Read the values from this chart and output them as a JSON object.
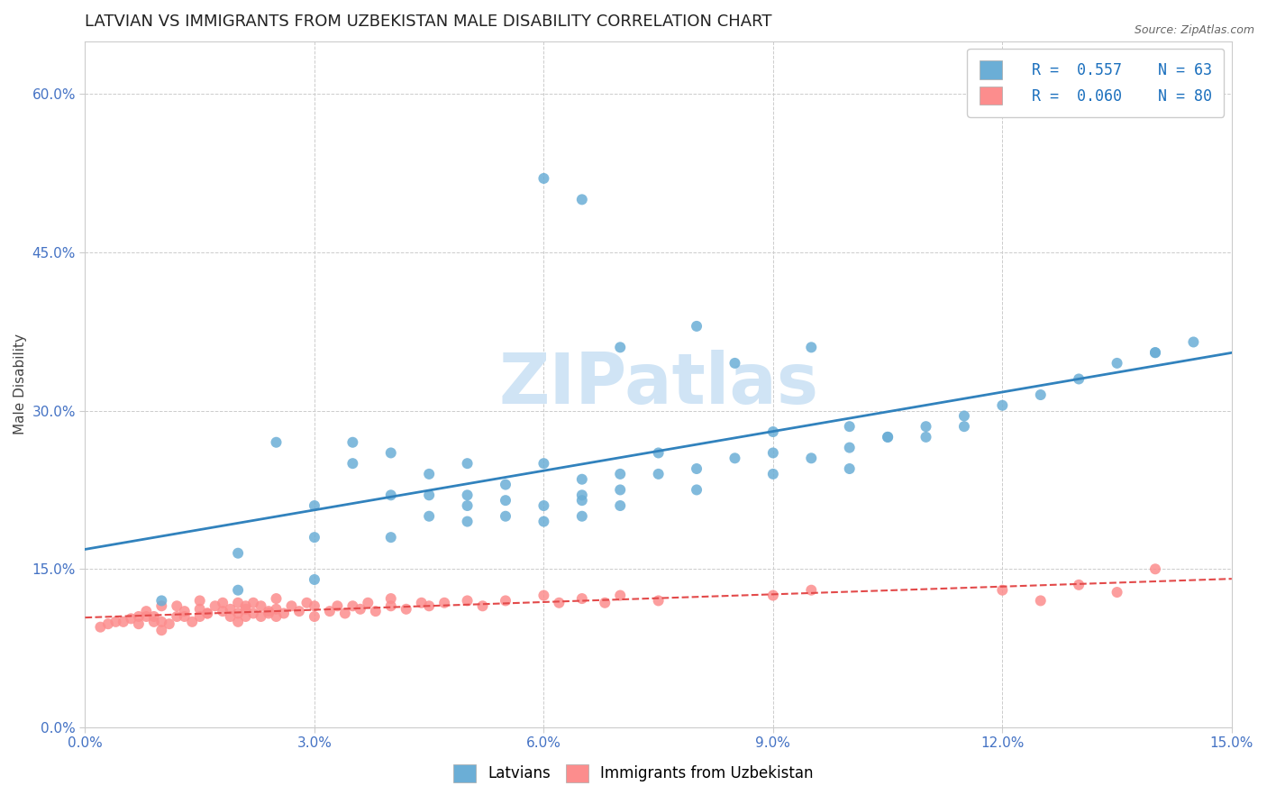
{
  "title": "LATVIAN VS IMMIGRANTS FROM UZBEKISTAN MALE DISABILITY CORRELATION CHART",
  "source_text": "Source: ZipAtlas.com",
  "xlabel": "",
  "ylabel": "Male Disability",
  "xlim": [
    0.0,
    0.15
  ],
  "ylim": [
    0.0,
    0.65
  ],
  "xticks": [
    0.0,
    0.03,
    0.06,
    0.09,
    0.12,
    0.15
  ],
  "yticks": [
    0.0,
    0.15,
    0.3,
    0.45,
    0.6
  ],
  "latvian_color": "#6baed6",
  "uzbek_color": "#fc8d8d",
  "trend_latvian_color": "#3182bd",
  "trend_uzbek_color": "#e34a4a",
  "legend_R_latvian": "R =  0.557",
  "legend_N_latvian": "N = 63",
  "legend_R_uzbek": "R =  0.060",
  "legend_N_uzbek": "N = 80",
  "latvian_scatter_x": [
    0.01,
    0.02,
    0.02,
    0.025,
    0.03,
    0.03,
    0.03,
    0.035,
    0.035,
    0.04,
    0.04,
    0.04,
    0.045,
    0.045,
    0.045,
    0.05,
    0.05,
    0.05,
    0.05,
    0.055,
    0.055,
    0.055,
    0.06,
    0.06,
    0.06,
    0.065,
    0.065,
    0.065,
    0.065,
    0.07,
    0.07,
    0.07,
    0.075,
    0.075,
    0.08,
    0.08,
    0.085,
    0.09,
    0.09,
    0.09,
    0.095,
    0.1,
    0.1,
    0.1,
    0.105,
    0.11,
    0.115,
    0.12,
    0.125,
    0.13,
    0.135,
    0.14,
    0.145,
    0.06,
    0.065,
    0.07,
    0.08,
    0.085,
    0.095,
    0.105,
    0.11,
    0.115,
    0.14
  ],
  "latvian_scatter_y": [
    0.12,
    0.13,
    0.165,
    0.27,
    0.14,
    0.18,
    0.21,
    0.25,
    0.27,
    0.18,
    0.22,
    0.26,
    0.2,
    0.22,
    0.24,
    0.195,
    0.21,
    0.22,
    0.25,
    0.2,
    0.215,
    0.23,
    0.195,
    0.21,
    0.25,
    0.2,
    0.215,
    0.22,
    0.235,
    0.21,
    0.225,
    0.24,
    0.24,
    0.26,
    0.225,
    0.245,
    0.255,
    0.24,
    0.26,
    0.28,
    0.255,
    0.245,
    0.265,
    0.285,
    0.275,
    0.275,
    0.285,
    0.305,
    0.315,
    0.33,
    0.345,
    0.355,
    0.365,
    0.52,
    0.5,
    0.36,
    0.38,
    0.345,
    0.36,
    0.275,
    0.285,
    0.295,
    0.355
  ],
  "uzbek_scatter_x": [
    0.005,
    0.007,
    0.008,
    0.009,
    0.01,
    0.01,
    0.012,
    0.012,
    0.013,
    0.015,
    0.015,
    0.015,
    0.016,
    0.017,
    0.018,
    0.018,
    0.019,
    0.02,
    0.02,
    0.02,
    0.021,
    0.021,
    0.022,
    0.022,
    0.023,
    0.023,
    0.024,
    0.025,
    0.025,
    0.025,
    0.026,
    0.027,
    0.028,
    0.029,
    0.03,
    0.03,
    0.032,
    0.033,
    0.034,
    0.035,
    0.036,
    0.037,
    0.038,
    0.04,
    0.04,
    0.042,
    0.044,
    0.045,
    0.047,
    0.05,
    0.052,
    0.055,
    0.06,
    0.062,
    0.065,
    0.068,
    0.07,
    0.075,
    0.09,
    0.095,
    0.12,
    0.125,
    0.13,
    0.135,
    0.14,
    0.002,
    0.003,
    0.004,
    0.006,
    0.007,
    0.008,
    0.009,
    0.01,
    0.011,
    0.013,
    0.014,
    0.016,
    0.019,
    0.021,
    0.024
  ],
  "uzbek_scatter_y": [
    0.1,
    0.105,
    0.11,
    0.105,
    0.1,
    0.115,
    0.105,
    0.115,
    0.11,
    0.105,
    0.112,
    0.12,
    0.108,
    0.115,
    0.11,
    0.118,
    0.112,
    0.1,
    0.108,
    0.118,
    0.105,
    0.115,
    0.108,
    0.118,
    0.105,
    0.115,
    0.11,
    0.105,
    0.112,
    0.122,
    0.108,
    0.115,
    0.11,
    0.118,
    0.105,
    0.115,
    0.11,
    0.115,
    0.108,
    0.115,
    0.112,
    0.118,
    0.11,
    0.115,
    0.122,
    0.112,
    0.118,
    0.115,
    0.118,
    0.12,
    0.115,
    0.12,
    0.125,
    0.118,
    0.122,
    0.118,
    0.125,
    0.12,
    0.125,
    0.13,
    0.13,
    0.12,
    0.135,
    0.128,
    0.15,
    0.095,
    0.098,
    0.1,
    0.103,
    0.098,
    0.105,
    0.1,
    0.092,
    0.098,
    0.105,
    0.1,
    0.108,
    0.105,
    0.112,
    0.108
  ],
  "background_color": "#ffffff",
  "grid_color": "#cccccc",
  "tick_color": "#4472c4",
  "title_fontsize": 13,
  "axis_label_fontsize": 11,
  "tick_fontsize": 11,
  "watermark_text": "ZIPatlas",
  "watermark_color": "#d0e4f5"
}
